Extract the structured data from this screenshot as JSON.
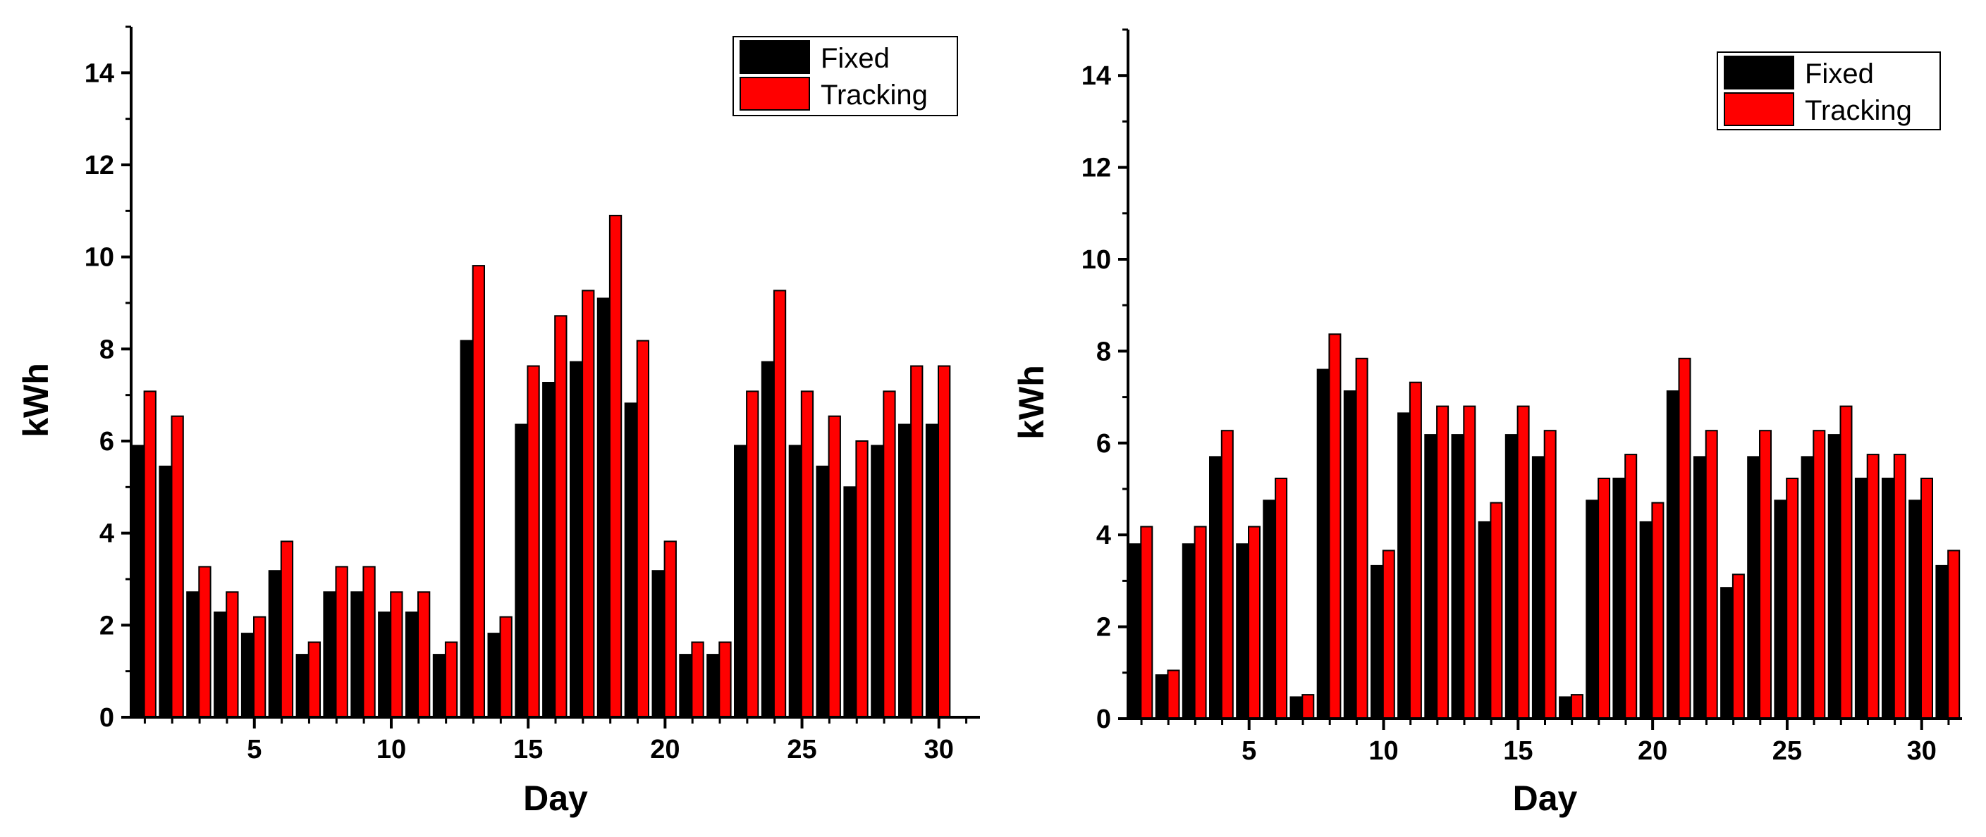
{
  "colors": {
    "fixed": "#000000",
    "tracking": "#ff0000",
    "axis": "#000000",
    "background": "#ffffff"
  },
  "chart_data": [
    {
      "type": "bar",
      "xlabel": "Day",
      "ylabel": "kWh",
      "xlim": [
        0.5,
        31.5
      ],
      "ylim": [
        0,
        15
      ],
      "xticks": [
        "5",
        "10",
        "15",
        "20",
        "25",
        "30"
      ],
      "yticks": [
        "0",
        "2",
        "4",
        "6",
        "8",
        "10",
        "12",
        "14"
      ],
      "grid": false,
      "legend_position": "top-right",
      "x": [
        1,
        2,
        3,
        4,
        5,
        6,
        7,
        8,
        9,
        10,
        11,
        12,
        13,
        14,
        15,
        16,
        17,
        18,
        19,
        20,
        21,
        22,
        23,
        24,
        25,
        26,
        27,
        28,
        29,
        30
      ],
      "series": [
        {
          "name": "Fixed",
          "color": "#000000",
          "values": [
            5.9,
            5.45,
            2.72,
            2.28,
            1.82,
            3.18,
            1.36,
            2.72,
            2.72,
            2.28,
            2.28,
            1.36,
            8.18,
            1.82,
            6.36,
            7.27,
            7.72,
            9.1,
            6.82,
            3.18,
            1.36,
            1.36,
            5.9,
            7.72,
            5.9,
            5.45,
            5.0,
            5.9,
            6.36,
            6.36
          ]
        },
        {
          "name": "Tracking",
          "color": "#ff0000",
          "values": [
            7.08,
            6.54,
            3.27,
            2.72,
            2.18,
            3.82,
            1.63,
            3.27,
            3.27,
            2.72,
            2.72,
            1.63,
            9.81,
            2.18,
            7.63,
            8.72,
            9.27,
            10.9,
            8.18,
            3.82,
            1.63,
            1.63,
            7.08,
            9.27,
            7.08,
            6.54,
            6.0,
            7.08,
            7.63,
            7.63
          ]
        }
      ]
    },
    {
      "type": "bar",
      "xlabel": "Day",
      "ylabel": "kWh",
      "xlim": [
        0.5,
        31.5
      ],
      "ylim": [
        0,
        15
      ],
      "xticks": [
        "5",
        "10",
        "15",
        "20",
        "25",
        "30"
      ],
      "yticks": [
        "0",
        "2",
        "4",
        "6",
        "8",
        "10",
        "12",
        "14"
      ],
      "grid": false,
      "legend_position": "top-right",
      "x": [
        1,
        2,
        3,
        4,
        5,
        6,
        7,
        8,
        9,
        10,
        11,
        12,
        13,
        14,
        15,
        16,
        17,
        18,
        19,
        20,
        21,
        22,
        23,
        24,
        25,
        26,
        27,
        28,
        29,
        30,
        31
      ],
      "series": [
        {
          "name": "Fixed",
          "color": "#000000",
          "values": [
            3.8,
            0.95,
            3.8,
            5.7,
            3.8,
            4.75,
            0.47,
            7.6,
            7.13,
            3.33,
            6.65,
            6.18,
            6.18,
            4.28,
            6.18,
            5.7,
            0.47,
            4.75,
            5.23,
            4.28,
            7.13,
            5.7,
            2.85,
            5.7,
            4.75,
            5.7,
            6.18,
            5.23,
            5.23,
            4.75,
            3.33
          ]
        },
        {
          "name": "Tracking",
          "color": "#ff0000",
          "values": [
            4.18,
            1.05,
            4.18,
            6.27,
            4.18,
            5.23,
            0.52,
            8.37,
            7.84,
            3.66,
            7.32,
            6.8,
            6.8,
            4.7,
            6.8,
            6.27,
            0.52,
            5.23,
            5.75,
            4.7,
            7.84,
            6.27,
            3.14,
            6.27,
            5.23,
            6.27,
            6.8,
            5.75,
            5.75,
            5.23,
            3.66
          ]
        }
      ]
    }
  ]
}
